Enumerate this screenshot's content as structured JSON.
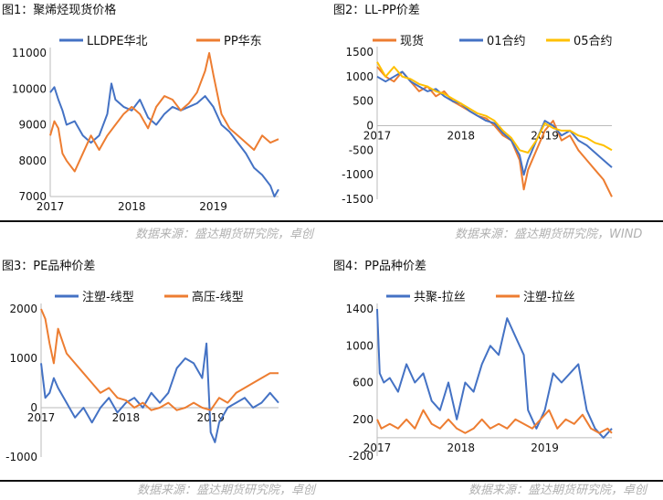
{
  "colors": {
    "blue": "#4472C4",
    "orange": "#ED7D31",
    "yellow": "#FFC000",
    "source": "#b0b0b0"
  },
  "panels": [
    {
      "id": "p1",
      "title": "图1：聚烯烃现货价格",
      "source": "数据来源：盛达期货研究院，卓创"
    },
    {
      "id": "p2",
      "title": "图2：LL-PP价差",
      "source": "数据来源：盛达期货研究院，WIND"
    },
    {
      "id": "p3",
      "title": "图3：PE品种价差",
      "source": "数据来源：盛达期货研究院，卓创"
    },
    {
      "id": "p4",
      "title": "图4：PP品种价差",
      "source": "数据来源：盛达期货研究院，卓创"
    }
  ],
  "chart_data": [
    {
      "type": "line",
      "ylim": [
        7000,
        11000
      ],
      "yticks": [
        "7000",
        "8000",
        "9000",
        "10000",
        "11000"
      ],
      "xticks": [
        "2017",
        "2018",
        "2019"
      ],
      "xrange": [
        2017.0,
        2019.8
      ],
      "legend": "top",
      "series": [
        {
          "name": "LLDPE华北",
          "color": "#4472C4",
          "x": [
            2017.0,
            2017.05,
            2017.1,
            2017.15,
            2017.2,
            2017.3,
            2017.4,
            2017.5,
            2017.6,
            2017.7,
            2017.75,
            2017.8,
            2017.9,
            2018.0,
            2018.1,
            2018.2,
            2018.3,
            2018.4,
            2018.5,
            2018.6,
            2018.7,
            2018.8,
            2018.9,
            2019.0,
            2019.1,
            2019.2,
            2019.3,
            2019.4,
            2019.5,
            2019.6,
            2019.7,
            2019.75,
            2019.8
          ],
          "y": [
            9900,
            10050,
            9700,
            9400,
            9000,
            9100,
            8700,
            8500,
            8700,
            9300,
            10150,
            9700,
            9500,
            9400,
            9700,
            9200,
            9000,
            9300,
            9500,
            9400,
            9500,
            9600,
            9800,
            9500,
            9000,
            8800,
            8500,
            8200,
            7800,
            7600,
            7300,
            7000,
            7200
          ]
        },
        {
          "name": "PP华东",
          "color": "#ED7D31",
          "x": [
            2017.0,
            2017.05,
            2017.1,
            2017.15,
            2017.2,
            2017.3,
            2017.4,
            2017.5,
            2017.6,
            2017.7,
            2017.8,
            2017.9,
            2018.0,
            2018.1,
            2018.2,
            2018.3,
            2018.4,
            2018.5,
            2018.6,
            2018.7,
            2018.8,
            2018.9,
            2018.95,
            2019.0,
            2019.1,
            2019.2,
            2019.3,
            2019.4,
            2019.5,
            2019.6,
            2019.7,
            2019.8
          ],
          "y": [
            8700,
            9100,
            8900,
            8200,
            8000,
            7700,
            8200,
            8700,
            8300,
            8700,
            9000,
            9300,
            9500,
            9300,
            8900,
            9500,
            9800,
            9700,
            9400,
            9600,
            9900,
            10500,
            11000,
            10400,
            9300,
            8900,
            8700,
            8500,
            8300,
            8700,
            8500,
            8600
          ]
        }
      ]
    },
    {
      "type": "line",
      "ylim": [
        -1500,
        1500
      ],
      "yticks": [
        "-1500",
        "-1000",
        "-500",
        "0",
        "500",
        "1000",
        "1500"
      ],
      "xticks": [
        "2017",
        "2018",
        "2019"
      ],
      "xrange": [
        2017.0,
        2019.8
      ],
      "legend": "top",
      "series": [
        {
          "name": "现货",
          "color": "#ED7D31",
          "x": [
            2017.0,
            2017.1,
            2017.2,
            2017.3,
            2017.4,
            2017.5,
            2017.6,
            2017.7,
            2017.8,
            2017.9,
            2018.0,
            2018.1,
            2018.2,
            2018.3,
            2018.4,
            2018.5,
            2018.6,
            2018.7,
            2018.75,
            2018.8,
            2018.9,
            2019.0,
            2019.1,
            2019.2,
            2019.3,
            2019.4,
            2019.5,
            2019.6,
            2019.7,
            2019.8
          ],
          "y": [
            1200,
            1000,
            900,
            1100,
            900,
            700,
            800,
            600,
            700,
            500,
            400,
            300,
            200,
            150,
            0,
            -200,
            -300,
            -700,
            -1300,
            -900,
            -500,
            -100,
            100,
            -300,
            -200,
            -500,
            -700,
            -900,
            -1100,
            -1450
          ]
        },
        {
          "name": "01合约",
          "color": "#4472C4",
          "x": [
            2017.0,
            2017.1,
            2017.2,
            2017.3,
            2017.4,
            2017.5,
            2017.6,
            2017.7,
            2017.8,
            2017.9,
            2018.0,
            2018.1,
            2018.2,
            2018.3,
            2018.4,
            2018.5,
            2018.6,
            2018.7,
            2018.75,
            2018.8,
            2018.9,
            2019.0,
            2019.1,
            2019.2,
            2019.3,
            2019.4,
            2019.5,
            2019.6,
            2019.7,
            2019.8
          ],
          "y": [
            1000,
            900,
            1000,
            1100,
            900,
            800,
            700,
            750,
            600,
            500,
            450,
            300,
            200,
            100,
            50,
            -150,
            -300,
            -600,
            -1000,
            -700,
            -300,
            100,
            0,
            -200,
            -100,
            -300,
            -400,
            -550,
            -700,
            -850
          ]
        },
        {
          "name": "05合约",
          "color": "#FFC000",
          "x": [
            2017.0,
            2017.1,
            2017.2,
            2017.3,
            2017.4,
            2017.5,
            2017.6,
            2017.7,
            2017.8,
            2017.9,
            2018.0,
            2018.1,
            2018.2,
            2018.3,
            2018.4,
            2018.5,
            2018.6,
            2018.7,
            2018.8,
            2018.9,
            2019.0,
            2019.1,
            2019.2,
            2019.3,
            2019.4,
            2019.5,
            2019.6,
            2019.7,
            2019.8
          ],
          "y": [
            1300,
            1000,
            1200,
            1000,
            950,
            850,
            800,
            700,
            650,
            550,
            450,
            350,
            250,
            200,
            100,
            -100,
            -250,
            -500,
            -550,
            -300,
            50,
            -50,
            -100,
            -100,
            -200,
            -250,
            -350,
            -400,
            -500
          ]
        }
      ]
    },
    {
      "type": "line",
      "ylim": [
        -1000,
        2000
      ],
      "yticks": [
        "-1000",
        "0",
        "1000",
        "2000"
      ],
      "xticks": [
        "2017",
        "2018",
        "2019"
      ],
      "xrange": [
        2017.0,
        2019.8
      ],
      "legend": "top",
      "series": [
        {
          "name": "注塑-线型",
          "color": "#4472C4",
          "x": [
            2017.0,
            2017.05,
            2017.1,
            2017.15,
            2017.2,
            2017.3,
            2017.4,
            2017.5,
            2017.6,
            2017.7,
            2017.8,
            2017.9,
            2018.0,
            2018.1,
            2018.2,
            2018.3,
            2018.4,
            2018.5,
            2018.6,
            2018.7,
            2018.8,
            2018.9,
            2018.95,
            2019.0,
            2019.05,
            2019.1,
            2019.2,
            2019.3,
            2019.4,
            2019.5,
            2019.6,
            2019.7,
            2019.8
          ],
          "y": [
            900,
            200,
            300,
            600,
            400,
            100,
            -200,
            0,
            -300,
            0,
            200,
            -100,
            100,
            200,
            0,
            300,
            100,
            300,
            800,
            1000,
            900,
            600,
            1300,
            -500,
            -700,
            -300,
            0,
            100,
            200,
            0,
            100,
            300,
            100
          ]
        },
        {
          "name": "高压-线型",
          "color": "#ED7D31",
          "x": [
            2017.0,
            2017.05,
            2017.1,
            2017.15,
            2017.2,
            2017.3,
            2017.4,
            2017.5,
            2017.6,
            2017.7,
            2017.8,
            2017.9,
            2018.0,
            2018.1,
            2018.2,
            2018.3,
            2018.4,
            2018.5,
            2018.6,
            2018.7,
            2018.8,
            2018.9,
            2019.0,
            2019.1,
            2019.2,
            2019.3,
            2019.4,
            2019.5,
            2019.6,
            2019.7,
            2019.8
          ],
          "y": [
            2000,
            1800,
            1300,
            900,
            1600,
            1100,
            900,
            700,
            500,
            300,
            400,
            200,
            150,
            0,
            100,
            -50,
            0,
            100,
            -50,
            0,
            100,
            0,
            -50,
            200,
            100,
            300,
            400,
            500,
            600,
            700,
            700
          ]
        }
      ]
    },
    {
      "type": "line",
      "ylim": [
        -200,
        1400
      ],
      "yticks": [
        "-200",
        "200",
        "600",
        "1000",
        "1400"
      ],
      "xticks": [
        "2017",
        "2018",
        "2019"
      ],
      "xrange": [
        2017.0,
        2019.8
      ],
      "legend": "top",
      "series": [
        {
          "name": "共聚-拉丝",
          "color": "#4472C4",
          "x": [
            2017.0,
            2017.03,
            2017.08,
            2017.15,
            2017.25,
            2017.35,
            2017.45,
            2017.55,
            2017.65,
            2017.75,
            2017.85,
            2017.95,
            2018.05,
            2018.15,
            2018.25,
            2018.35,
            2018.45,
            2018.55,
            2018.65,
            2018.75,
            2018.8,
            2018.9,
            2019.0,
            2019.1,
            2019.2,
            2019.3,
            2019.4,
            2019.5,
            2019.6,
            2019.7,
            2019.8
          ],
          "y": [
            1400,
            700,
            600,
            650,
            500,
            800,
            600,
            700,
            400,
            300,
            600,
            200,
            600,
            500,
            800,
            1000,
            900,
            1300,
            1100,
            900,
            300,
            100,
            300,
            700,
            600,
            700,
            800,
            300,
            100,
            0,
            100
          ]
        },
        {
          "name": "注塑-拉丝",
          "color": "#ED7D31",
          "x": [
            2017.0,
            2017.05,
            2017.15,
            2017.25,
            2017.35,
            2017.45,
            2017.55,
            2017.65,
            2017.75,
            2017.85,
            2017.95,
            2018.05,
            2018.15,
            2018.25,
            2018.35,
            2018.45,
            2018.55,
            2018.65,
            2018.75,
            2018.85,
            2018.95,
            2019.05,
            2019.15,
            2019.25,
            2019.35,
            2019.45,
            2019.55,
            2019.65,
            2019.75,
            2019.8
          ],
          "y": [
            200,
            100,
            150,
            100,
            200,
            100,
            300,
            150,
            100,
            200,
            100,
            50,
            100,
            200,
            100,
            150,
            100,
            200,
            150,
            100,
            200,
            300,
            100,
            200,
            150,
            250,
            100,
            50,
            100,
            50
          ]
        }
      ]
    }
  ]
}
